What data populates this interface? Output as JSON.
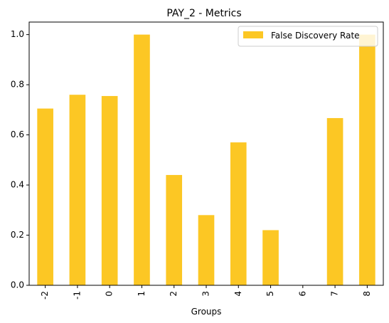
{
  "chart_data": {
    "type": "bar",
    "title": "PAY_2 - Metrics",
    "xlabel": "Groups",
    "ylabel": "",
    "categories": [
      "-2",
      "-1",
      "0",
      "1",
      "2",
      "3",
      "4",
      "5",
      "6",
      "7",
      "8"
    ],
    "series": [
      {
        "name": "False Discovery Rate",
        "color": "#fcc724",
        "values": [
          0.705,
          0.76,
          0.755,
          1.0,
          0.44,
          0.28,
          0.57,
          0.22,
          0.0,
          0.667,
          1.0
        ]
      }
    ],
    "ylim": [
      0,
      1.05
    ],
    "yticks": [
      "0.0",
      "0.2",
      "0.4",
      "0.6",
      "0.8",
      "1.0"
    ],
    "grid": false,
    "legend_position": "top-right"
  }
}
